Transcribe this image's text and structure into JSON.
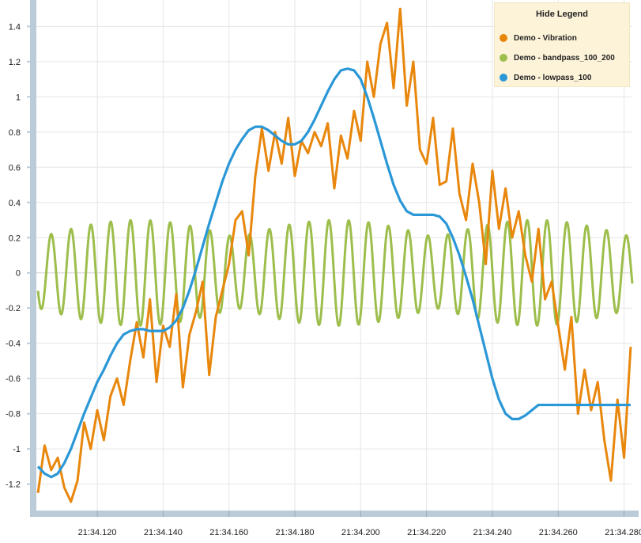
{
  "legend": {
    "title": "Hide Legend"
  },
  "chart_data": {
    "type": "line",
    "title": "",
    "xlabel": "",
    "ylabel": "",
    "x_ticks": [
      "21:34.120",
      "21:34.140",
      "21:34.160",
      "21:34.180",
      "21:34.200",
      "21:34.220",
      "21:34.240",
      "21:34.260",
      "21:34.280"
    ],
    "x_tick_values": [
      0.12,
      0.14,
      0.16,
      0.18,
      0.2,
      0.22,
      0.24,
      0.26,
      0.28
    ],
    "xlim": [
      0.1015,
      0.2825
    ],
    "ylim": [
      -1.35,
      1.55
    ],
    "y_ticks": [
      -1.2,
      -1,
      -0.8,
      -0.6,
      -0.4,
      -0.2,
      0,
      0.2,
      0.4,
      0.6,
      0.8,
      1,
      1.2,
      1.4
    ],
    "y_tick_labels": [
      "-1.2",
      "-1",
      "-0.8",
      "-0.6",
      "-0.4",
      "-0.2",
      "0",
      "0.2",
      "0.4",
      "0.6",
      "0.8",
      "1",
      "1.2",
      "1.4"
    ],
    "grid": true,
    "legend_position": "top-right",
    "series": [
      {
        "name": "Demo - Vibration",
        "color": "#e8870c",
        "x": [
          0.102,
          0.104,
          0.106,
          0.108,
          0.11,
          0.112,
          0.114,
          0.116,
          0.118,
          0.12,
          0.122,
          0.124,
          0.126,
          0.128,
          0.13,
          0.132,
          0.134,
          0.136,
          0.138,
          0.14,
          0.142,
          0.144,
          0.146,
          0.148,
          0.15,
          0.152,
          0.154,
          0.156,
          0.158,
          0.16,
          0.162,
          0.164,
          0.166,
          0.168,
          0.17,
          0.172,
          0.174,
          0.176,
          0.178,
          0.18,
          0.182,
          0.184,
          0.186,
          0.188,
          0.19,
          0.192,
          0.194,
          0.196,
          0.198,
          0.2,
          0.202,
          0.204,
          0.206,
          0.208,
          0.21,
          0.212,
          0.214,
          0.216,
          0.218,
          0.22,
          0.222,
          0.224,
          0.226,
          0.228,
          0.23,
          0.232,
          0.234,
          0.236,
          0.238,
          0.24,
          0.242,
          0.244,
          0.246,
          0.248,
          0.25,
          0.252,
          0.254,
          0.256,
          0.258,
          0.26,
          0.262,
          0.264,
          0.266,
          0.268,
          0.27,
          0.272,
          0.274,
          0.276,
          0.278,
          0.28,
          0.282
        ],
        "values": [
          -1.25,
          -0.98,
          -1.12,
          -1.05,
          -1.22,
          -1.3,
          -1.18,
          -0.85,
          -1.0,
          -0.78,
          -0.95,
          -0.7,
          -0.6,
          -0.75,
          -0.5,
          -0.28,
          -0.48,
          -0.15,
          -0.62,
          -0.3,
          -0.42,
          -0.12,
          -0.65,
          -0.35,
          -0.22,
          -0.05,
          -0.58,
          -0.25,
          -0.1,
          0.05,
          0.3,
          0.35,
          0.1,
          0.55,
          0.82,
          0.58,
          0.8,
          0.62,
          0.88,
          0.55,
          0.75,
          0.68,
          0.8,
          0.72,
          0.85,
          0.48,
          0.78,
          0.65,
          0.92,
          0.75,
          1.2,
          1.0,
          1.3,
          1.42,
          1.05,
          1.5,
          0.95,
          1.2,
          0.7,
          0.62,
          0.88,
          0.5,
          0.52,
          0.82,
          0.45,
          0.3,
          0.62,
          0.4,
          0.05,
          0.58,
          0.25,
          0.48,
          0.2,
          0.35,
          0.1,
          -0.05,
          0.25,
          -0.15,
          -0.05,
          -0.3,
          -0.55,
          -0.25,
          -0.8,
          -0.55,
          -0.78,
          -0.62,
          -0.95,
          -1.18,
          -0.72,
          -1.05,
          -0.42
        ]
      },
      {
        "name": "Demo - bandpass_100_200",
        "color": "#9dbe4c"
      },
      {
        "name": "Demo - lowpass_100",
        "color": "#2a97d6",
        "x": [
          0.102,
          0.104,
          0.106,
          0.108,
          0.11,
          0.112,
          0.114,
          0.116,
          0.118,
          0.12,
          0.122,
          0.124,
          0.126,
          0.128,
          0.13,
          0.132,
          0.134,
          0.136,
          0.138,
          0.14,
          0.142,
          0.144,
          0.146,
          0.148,
          0.15,
          0.152,
          0.154,
          0.156,
          0.158,
          0.16,
          0.162,
          0.164,
          0.166,
          0.168,
          0.17,
          0.172,
          0.174,
          0.176,
          0.178,
          0.18,
          0.182,
          0.184,
          0.186,
          0.188,
          0.19,
          0.192,
          0.194,
          0.196,
          0.198,
          0.2,
          0.202,
          0.204,
          0.206,
          0.208,
          0.21,
          0.212,
          0.214,
          0.216,
          0.218,
          0.22,
          0.222,
          0.224,
          0.226,
          0.228,
          0.23,
          0.232,
          0.234,
          0.236,
          0.238,
          0.24,
          0.242,
          0.244,
          0.246,
          0.248,
          0.25,
          0.252,
          0.254,
          0.256,
          0.258,
          0.26,
          0.262,
          0.264,
          0.266,
          0.268,
          0.27,
          0.272,
          0.274,
          0.276,
          0.278,
          0.28,
          0.282
        ],
        "values": [
          -1.1,
          -1.14,
          -1.16,
          -1.14,
          -1.08,
          -1.0,
          -0.9,
          -0.8,
          -0.71,
          -0.62,
          -0.55,
          -0.47,
          -0.4,
          -0.35,
          -0.33,
          -0.32,
          -0.32,
          -0.33,
          -0.33,
          -0.33,
          -0.31,
          -0.27,
          -0.2,
          -0.1,
          0.02,
          0.15,
          0.28,
          0.4,
          0.52,
          0.62,
          0.7,
          0.76,
          0.81,
          0.83,
          0.83,
          0.81,
          0.78,
          0.75,
          0.73,
          0.73,
          0.75,
          0.8,
          0.87,
          0.95,
          1.03,
          1.1,
          1.15,
          1.16,
          1.15,
          1.1,
          1.0,
          0.88,
          0.75,
          0.62,
          0.5,
          0.41,
          0.35,
          0.33,
          0.33,
          0.33,
          0.33,
          0.32,
          0.28,
          0.2,
          0.1,
          -0.02,
          -0.15,
          -0.3,
          -0.45,
          -0.6,
          -0.72,
          -0.8,
          -0.83,
          -0.83,
          -0.81,
          -0.78,
          -0.75,
          -0.75,
          -0.75,
          -0.75,
          -0.75,
          -0.75,
          -0.75,
          -0.75,
          -0.75,
          -0.75,
          -0.75,
          -0.75,
          -0.75,
          -0.75,
          -0.75
        ]
      }
    ]
  }
}
